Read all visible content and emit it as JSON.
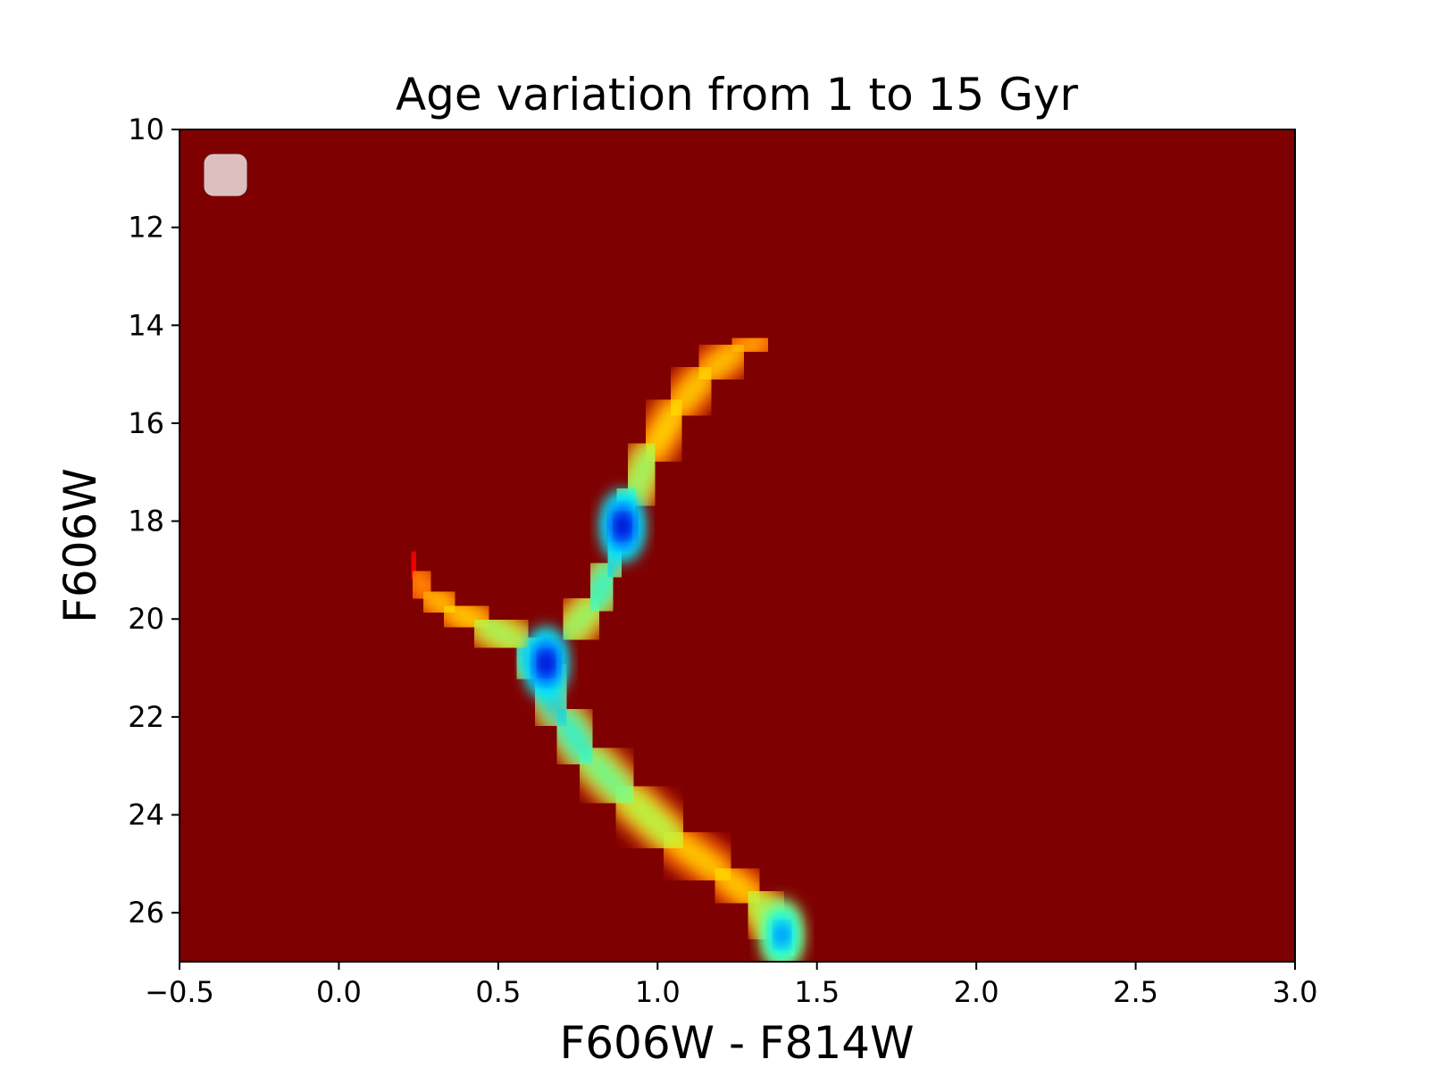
{
  "chart_data": {
    "type": "heatmap",
    "title": "Age variation from 1 to 15 Gyr",
    "xlabel": "F606W - F814W",
    "ylabel": "F606W",
    "xlim": [
      -0.5,
      3.0
    ],
    "ylim": [
      10,
      27
    ],
    "y_inverted": true,
    "grid": false,
    "legend": {
      "placement": "top-left",
      "entries": []
    },
    "colormap": "jet",
    "colors": {
      "background": "#7f0000",
      "jet_stops": [
        "#7f0000",
        "#ff0000",
        "#ff8000",
        "#ffff00",
        "#80ff80",
        "#00ffff",
        "#0080ff",
        "#0000ff",
        "#00008f"
      ]
    },
    "x_ticks": [
      -0.5,
      0.0,
      0.5,
      1.0,
      1.5,
      2.0,
      2.5,
      3.0
    ],
    "x_tick_labels": [
      "−0.5",
      "0.0",
      "0.5",
      "1.0",
      "1.5",
      "2.0",
      "2.5",
      "3.0"
    ],
    "y_ticks": [
      10,
      12,
      14,
      16,
      18,
      20,
      22,
      24,
      26
    ],
    "y_tick_labels": [
      "10",
      "12",
      "14",
      "16",
      "18",
      "20",
      "22",
      "24",
      "26"
    ],
    "density_tracks": [
      {
        "feature": "main sequence",
        "color_index": [
          1.42,
          1.38,
          1.3,
          1.2,
          1.05,
          0.9,
          0.78,
          0.7,
          0.63,
          0.57
        ],
        "magnitude": [
          26.8,
          26.4,
          25.7,
          25.2,
          24.5,
          23.6,
          22.8,
          22.0,
          21.1,
          20.5
        ],
        "relative_density": [
          0.55,
          0.55,
          0.42,
          0.4,
          0.4,
          0.55,
          0.62,
          0.7,
          0.78,
          0.8
        ]
      },
      {
        "feature": "subgiant branch",
        "color_index": [
          0.57,
          0.45,
          0.35,
          0.28,
          0.24,
          0.23
        ],
        "magnitude": [
          20.5,
          20.1,
          19.8,
          19.5,
          19.1,
          18.7
        ],
        "relative_density": [
          0.55,
          0.45,
          0.38,
          0.32,
          0.25,
          0.2
        ]
      },
      {
        "feature": "red giant branch",
        "color_index": [
          0.72,
          0.8,
          0.85,
          0.88,
          0.92,
          0.98,
          1.06,
          1.15,
          1.25,
          1.33
        ],
        "magnitude": [
          20.3,
          19.7,
          19.0,
          18.3,
          17.5,
          16.6,
          15.7,
          15.0,
          14.5,
          14.3
        ],
        "relative_density": [
          0.45,
          0.6,
          0.7,
          0.8,
          0.55,
          0.48,
          0.42,
          0.38,
          0.34,
          0.28
        ]
      }
    ],
    "density_peaks": [
      {
        "color_index": 0.65,
        "magnitude": 20.9,
        "relative_density": 1.0
      },
      {
        "color_index": 0.89,
        "magnitude": 18.1,
        "relative_density": 1.0
      },
      {
        "color_index": 1.39,
        "magnitude": 26.45,
        "relative_density": 0.8
      }
    ]
  }
}
